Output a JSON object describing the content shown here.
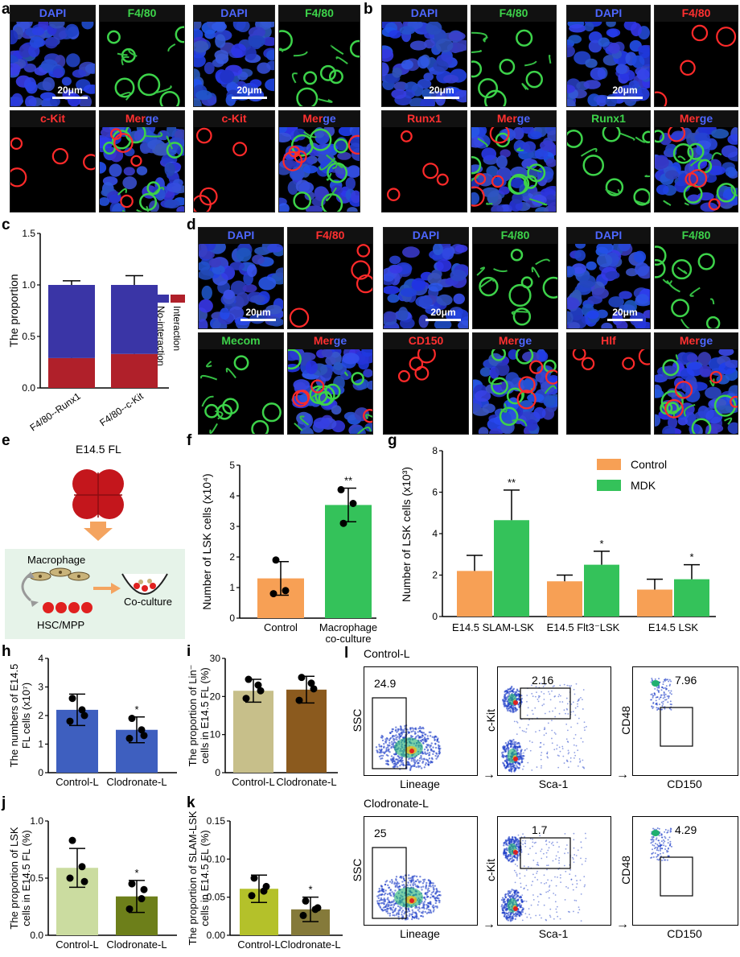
{
  "panel_letters": {
    "a": "a",
    "b": "b",
    "c": "c",
    "d": "d",
    "e": "e",
    "f": "f",
    "g": "g",
    "h": "h",
    "i": "i",
    "j": "j",
    "k": "k",
    "l": "l"
  },
  "colors": {
    "dapi": "#2d44d8",
    "green": "#3dd34a",
    "red": "#e42626",
    "blue_bar": "#3a35a6",
    "red_bar": "#b0202a",
    "orange": "#f7a055",
    "mdk_green": "#34c25a",
    "h_blue": "#3e5fbf",
    "i_tan": "#c7bf8a",
    "i_brown": "#8b5a1e",
    "j_light": "#cbdca0",
    "j_dark": "#6d7f1a",
    "k_lime": "#b4c12a",
    "k_olive": "#857a3a",
    "flow_bg": "#e6f3e9"
  },
  "micrographs": {
    "a": [
      {
        "id": "a1",
        "labels": [
          [
            "DAPI",
            "#3b55ff"
          ],
          "",
          [
            "F4/80",
            "#3dd34a"
          ]
        ],
        "tl": {
          "text": "DAPI",
          "color": "#4d66ff"
        },
        "tr": {
          "text": "F4/80",
          "color": "#3dd34a"
        },
        "bl": {
          "text": "c-Kit",
          "color": "#ff3030"
        },
        "br": {
          "parts": [
            "Mer",
            "ge"
          ]
        },
        "scale": "20μm"
      },
      {
        "id": "a2",
        "tl": {
          "text": "DAPI",
          "color": "#4d66ff"
        },
        "tr": {
          "text": "F4/80",
          "color": "#3dd34a"
        },
        "bl": {
          "text": "c-Kit",
          "color": "#ff3030"
        },
        "br": {
          "parts": [
            "Mer",
            "ge"
          ]
        },
        "scale": "20μm"
      }
    ],
    "b": [
      {
        "id": "b1",
        "tl": {
          "text": "DAPI",
          "color": "#4d66ff"
        },
        "tr": {
          "text": "F4/80",
          "color": "#3dd34a"
        },
        "bl": {
          "text": "Runx1",
          "color": "#ff3030"
        },
        "br": {
          "parts": [
            "Mer",
            "ge"
          ]
        },
        "scale": "20μm"
      },
      {
        "id": "b2",
        "tl": {
          "text": "DAPI",
          "color": "#4d66ff"
        },
        "tr": {
          "text": "F4/80",
          "color": "#ff3030"
        },
        "bl": {
          "text": "Runx1",
          "color": "#3dd34a"
        },
        "br": {
          "parts": [
            "Mer",
            "ge"
          ]
        },
        "scale": "20μm"
      }
    ],
    "d": [
      {
        "id": "d1",
        "tl": {
          "text": "DAPI",
          "color": "#4d66ff"
        },
        "tr": {
          "text": "F4/80",
          "color": "#ff3030"
        },
        "bl": {
          "text": "Mecom",
          "color": "#3dd34a"
        },
        "br": {
          "parts": [
            "Mer",
            "ge"
          ]
        },
        "scale": "20μm"
      },
      {
        "id": "d2",
        "tl": {
          "text": "DAPI",
          "color": "#4d66ff"
        },
        "tr": {
          "text": "F4/80",
          "color": "#3dd34a"
        },
        "bl": {
          "text": "CD150",
          "color": "#ff3030"
        },
        "br": {
          "parts": [
            "Mer",
            "ge"
          ]
        },
        "scale": "20μm"
      },
      {
        "id": "d3",
        "tl": {
          "text": "DAPI",
          "color": "#4d66ff"
        },
        "tr": {
          "text": "F4/80",
          "color": "#3dd34a"
        },
        "bl": {
          "text": "Hlf",
          "color": "#ff3030"
        },
        "br": {
          "parts": [
            "Mer",
            "ge"
          ]
        },
        "scale": "20μm"
      }
    ]
  },
  "panel_e": {
    "title": "E14.5 FL",
    "macrophage": "Macrophage",
    "hsc": "HSC/MPP",
    "coculture": "Co-culture"
  },
  "panel_l": {
    "rows": [
      {
        "title": "Control-L",
        "gate1": "24.9",
        "gate2": "2.16",
        "gate3": "7.96"
      },
      {
        "title": "Clodronate-L",
        "gate1": "25",
        "gate2": "1.7",
        "gate3": "4.29"
      }
    ],
    "axes": {
      "p1x": "Lineage",
      "p1y": "SSC",
      "p2x": "Sca-1",
      "p2y": "c-Kit",
      "p3x": "CD150",
      "p3y": "CD48"
    }
  },
  "chart_data": [
    {
      "panel": "c",
      "type": "bar",
      "stacked": true,
      "categories": [
        "F4/80--Runx1",
        "F4/80--c-Kit"
      ],
      "series": [
        {
          "name": "Interaction",
          "values": [
            0.29,
            0.33
          ],
          "err": [
            0.03,
            0.08
          ]
        },
        {
          "name": "No-interaction",
          "values": [
            0.71,
            0.67
          ],
          "err": [
            0.04,
            0.09
          ]
        }
      ],
      "ylabel": "The proportion",
      "ylim": [
        0,
        1.5
      ],
      "yticks": [
        "0.0",
        "0.5",
        "1.0",
        "1.5"
      ]
    },
    {
      "panel": "f",
      "type": "bar",
      "categories": [
        "Control",
        "Macrophage co-culture"
      ],
      "values": [
        1.3,
        3.7
      ],
      "err": [
        0.55,
        0.55
      ],
      "points": [
        [
          1.9,
          0.9,
          0.8
        ],
        [
          3.1,
          3.75,
          4.2
        ]
      ],
      "sig": [
        "",
        "**"
      ],
      "ylabel": "Number of LSK cells (x10⁴)",
      "ylim": [
        0,
        5
      ],
      "yticks": [
        "0",
        "1",
        "2",
        "3",
        "4",
        "5"
      ]
    },
    {
      "panel": "g",
      "type": "bar",
      "categories": [
        "E14.5 SLAM-LSK",
        "E14.5 Flt3⁻LSK",
        "E14.5 LSK"
      ],
      "series": [
        {
          "name": "Control",
          "values": [
            2.2,
            1.7,
            1.3
          ],
          "err": [
            0.75,
            0.3,
            0.5
          ]
        },
        {
          "name": "MDK",
          "values": [
            4.65,
            2.5,
            1.8
          ],
          "err": [
            1.45,
            0.65,
            0.7
          ]
        }
      ],
      "sig": [
        "**",
        "*",
        "*"
      ],
      "ylabel": "Number of LSK cells (x10³)",
      "ylim": [
        0,
        8
      ],
      "yticks": [
        "0",
        "2",
        "4",
        "6",
        "8"
      ]
    },
    {
      "panel": "h",
      "type": "bar",
      "categories": [
        "Control-L",
        "Clodronate-L"
      ],
      "values": [
        2.2,
        1.5
      ],
      "err": [
        0.55,
        0.45
      ],
      "points": [
        [
          2.6,
          2.2,
          1.8,
          2.0
        ],
        [
          1.9,
          1.5,
          1.2,
          1.3
        ]
      ],
      "sig": [
        "",
        "*"
      ],
      "ylabel": "The numbers of E14.5 FL cells (x10⁷)",
      "ylim": [
        0,
        4
      ],
      "yticks": [
        "0",
        "1",
        "2",
        "3",
        "4"
      ]
    },
    {
      "panel": "i",
      "type": "bar",
      "categories": [
        "Control-L",
        "Clodronate-L"
      ],
      "values": [
        21.5,
        21.8
      ],
      "err": [
        3.0,
        3.5
      ],
      "points": [
        [
          24.5,
          23,
          19.5,
          21.5
        ],
        [
          25,
          23.5,
          19,
          22
        ]
      ],
      "sig": [
        "",
        ""
      ],
      "ylabel": "The proportion of Lin⁻ cells in E14.5 FL (%)",
      "ylim": [
        0,
        30
      ],
      "yticks": [
        "0",
        "10",
        "20",
        "30"
      ]
    },
    {
      "panel": "j",
      "type": "bar",
      "categories": [
        "Control-L",
        "Clodronate-L"
      ],
      "values": [
        0.59,
        0.34
      ],
      "err": [
        0.17,
        0.14
      ],
      "points": [
        [
          0.83,
          0.6,
          0.5,
          0.47
        ],
        [
          0.45,
          0.32,
          0.23,
          0.4
        ]
      ],
      "sig": [
        "",
        "*"
      ],
      "ylabel": "The proportion of LSK cells in E14.5 FL (%)",
      "ylim": [
        0,
        1.0
      ],
      "yticks": [
        "0.0",
        "0.5",
        "1.0"
      ]
    },
    {
      "panel": "k",
      "type": "bar",
      "categories": [
        "Control-L",
        "Clodronate-L"
      ],
      "values": [
        0.061,
        0.034
      ],
      "err": [
        0.018,
        0.016
      ],
      "points": [
        [
          0.075,
          0.058,
          0.052,
          0.064
        ],
        [
          0.045,
          0.034,
          0.026,
          0.036
        ]
      ],
      "sig": [
        "",
        "*"
      ],
      "ylabel": "The proportion of SLAM-LSK cells in E14.5 FL (%)",
      "ylim": [
        0,
        0.15
      ],
      "yticks": [
        "0.00",
        "0.05",
        "0.10",
        "0.15"
      ]
    }
  ]
}
